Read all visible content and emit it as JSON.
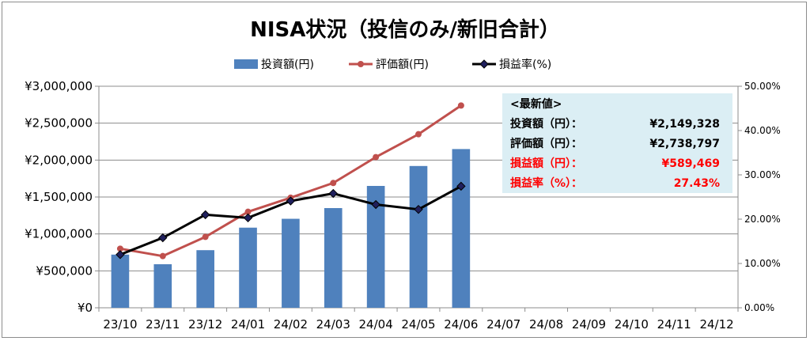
{
  "chart_data": {
    "type": "bar+line",
    "title": "NISA状況（投信のみ/新旧合計）",
    "categories": [
      "23/10",
      "23/11",
      "23/12",
      "24/01",
      "24/02",
      "24/03",
      "24/04",
      "24/05",
      "24/06",
      "24/07",
      "24/08",
      "24/09",
      "24/10",
      "24/11",
      "24/12"
    ],
    "series": [
      {
        "name": "投資額(円)",
        "type": "bar",
        "axis": "left",
        "color": "#4f81bd",
        "values": [
          720000,
          590000,
          780000,
          1085000,
          1205000,
          1350000,
          1650000,
          1920000,
          2149328,
          null,
          null,
          null,
          null,
          null,
          null
        ]
      },
      {
        "name": "評価額(円)",
        "type": "line",
        "axis": "left",
        "color": "#c0504d",
        "values": [
          800000,
          700000,
          960000,
          1300000,
          1490000,
          1690000,
          2040000,
          2350000,
          2738797,
          null,
          null,
          null,
          null,
          null,
          null
        ]
      },
      {
        "name": "損益率(%)",
        "type": "line",
        "axis": "right",
        "color": "#000000",
        "values": [
          12.0,
          15.8,
          21.0,
          20.3,
          24.1,
          25.8,
          23.3,
          22.2,
          27.43,
          null,
          null,
          null,
          null,
          null,
          null
        ]
      }
    ],
    "y_left": {
      "min": 0,
      "max": 3000000,
      "step": 500000,
      "tick_labels": [
        "¥0",
        "¥500,000",
        "¥1,000,000",
        "¥1,500,000",
        "¥2,000,000",
        "¥2,500,000",
        "¥3,000,000"
      ]
    },
    "y_right": {
      "min": 0,
      "max": 50,
      "step": 10,
      "tick_labels": [
        "0.00%",
        "10.00%",
        "20.00%",
        "30.00%",
        "40.00%",
        "50.00%"
      ]
    },
    "grid": true,
    "legend": "top-center"
  },
  "info_box": {
    "header": "<最新値>",
    "rows": [
      {
        "label": "投資額（円）：",
        "value": "¥2,149,328",
        "color": "#000000"
      },
      {
        "label": "評価額（円）：",
        "value": "¥2,738,797",
        "color": "#000000"
      },
      {
        "label": "損益額（円）：",
        "value": "¥589,469",
        "color": "#ff0000"
      },
      {
        "label": "損益率（%）：",
        "value": "27.43%",
        "color": "#ff0000"
      }
    ]
  }
}
